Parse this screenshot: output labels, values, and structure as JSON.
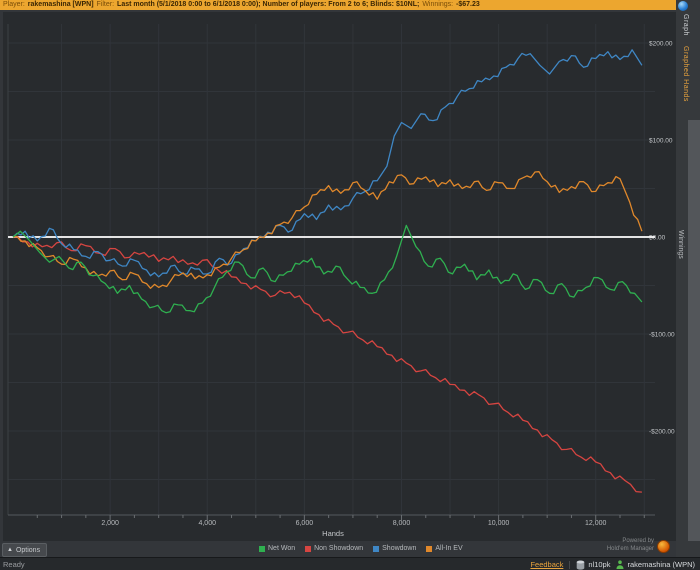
{
  "filter_bar": {
    "player_label": "Player:",
    "player_value": "rakemashina [WPN]",
    "filter_label": "Filter:",
    "filter_value": "Last month (5/1/2018 0:00 to 6/1/2018 0:00); Number of players: From 2 to 6; Blinds: $10NL;",
    "winnings_label": "Winnings:",
    "winnings_value": "-$67.23"
  },
  "right_panel": {
    "help_icon": "info-icon",
    "tabs": [
      {
        "label": "Graph",
        "active": true
      },
      {
        "label": "Graphed Hands",
        "active": false
      }
    ]
  },
  "chart_data": {
    "type": "line",
    "title": "",
    "xlabel": "Hands",
    "ylabel": "Winnings",
    "xlim": [
      0,
      13000
    ],
    "ylim": [
      -270,
      220
    ],
    "grid": true,
    "zero_line": true,
    "zero_line_color": "#ffffff",
    "background": "#282b2e",
    "grid_color": "#31353a",
    "legend_position": "bottom",
    "x_ticks": [
      {
        "v": 2000,
        "label": "2,000"
      },
      {
        "v": 4000,
        "label": "4,000"
      },
      {
        "v": 6000,
        "label": "6,000"
      },
      {
        "v": 8000,
        "label": "8,000"
      },
      {
        "v": 10000,
        "label": "10,000"
      },
      {
        "v": 12000,
        "label": "12,000"
      }
    ],
    "y_ticks": [
      {
        "v": 200,
        "label": "$200.00"
      },
      {
        "v": 100,
        "label": "$100.00"
      },
      {
        "v": 0,
        "label": "$0.00"
      },
      {
        "v": -100,
        "label": "-$100.00"
      },
      {
        "v": -200,
        "label": "-$200.00"
      }
    ],
    "series": [
      {
        "name": "Net Won",
        "color": "#2fb050",
        "points": [
          [
            0,
            0
          ],
          [
            150,
            6
          ],
          [
            350,
            -4
          ],
          [
            550,
            -16
          ],
          [
            750,
            -26
          ],
          [
            950,
            -20
          ],
          [
            1150,
            -32
          ],
          [
            1400,
            -26
          ],
          [
            1650,
            -40
          ],
          [
            1900,
            -48
          ],
          [
            2150,
            -58
          ],
          [
            2400,
            -50
          ],
          [
            2650,
            -64
          ],
          [
            2900,
            -72
          ],
          [
            3150,
            -78
          ],
          [
            3400,
            -70
          ],
          [
            3650,
            -76
          ],
          [
            3900,
            -68
          ],
          [
            4150,
            -52
          ],
          [
            4400,
            -36
          ],
          [
            4650,
            -26
          ],
          [
            4900,
            -42
          ],
          [
            5150,
            -32
          ],
          [
            5400,
            -46
          ],
          [
            5650,
            -36
          ],
          [
            5900,
            -28
          ],
          [
            6150,
            -22
          ],
          [
            6400,
            -38
          ],
          [
            6650,
            -30
          ],
          [
            6900,
            -44
          ],
          [
            7150,
            -52
          ],
          [
            7400,
            -58
          ],
          [
            7650,
            -44
          ],
          [
            7900,
            -20
          ],
          [
            8100,
            12
          ],
          [
            8300,
            -10
          ],
          [
            8550,
            -30
          ],
          [
            8800,
            -22
          ],
          [
            9050,
            -38
          ],
          [
            9300,
            -28
          ],
          [
            9550,
            -44
          ],
          [
            9800,
            -34
          ],
          [
            10050,
            -48
          ],
          [
            10300,
            -38
          ],
          [
            10550,
            -54
          ],
          [
            10800,
            -44
          ],
          [
            11050,
            -58
          ],
          [
            11300,
            -48
          ],
          [
            11550,
            -62
          ],
          [
            11800,
            -52
          ],
          [
            12050,
            -42
          ],
          [
            12300,
            -54
          ],
          [
            12550,
            -46
          ],
          [
            12800,
            -58
          ],
          [
            12950,
            -67
          ]
        ]
      },
      {
        "name": "Non Showdown",
        "color": "#d64541",
        "points": [
          [
            0,
            0
          ],
          [
            300,
            -5
          ],
          [
            600,
            -10
          ],
          [
            900,
            -6
          ],
          [
            1200,
            -14
          ],
          [
            1500,
            -9
          ],
          [
            1800,
            -17
          ],
          [
            2100,
            -12
          ],
          [
            2400,
            -21
          ],
          [
            2700,
            -16
          ],
          [
            3000,
            -25
          ],
          [
            3300,
            -20
          ],
          [
            3600,
            -28
          ],
          [
            3900,
            -24
          ],
          [
            4200,
            -33
          ],
          [
            4500,
            -41
          ],
          [
            4800,
            -48
          ],
          [
            5100,
            -54
          ],
          [
            5400,
            -60
          ],
          [
            5700,
            -57
          ],
          [
            6000,
            -68
          ],
          [
            6300,
            -80
          ],
          [
            6600,
            -90
          ],
          [
            6900,
            -98
          ],
          [
            7200,
            -106
          ],
          [
            7500,
            -113
          ],
          [
            7800,
            -122
          ],
          [
            8100,
            -130
          ],
          [
            8400,
            -138
          ],
          [
            8700,
            -145
          ],
          [
            9000,
            -152
          ],
          [
            9300,
            -158
          ],
          [
            9600,
            -163
          ],
          [
            9900,
            -172
          ],
          [
            10200,
            -181
          ],
          [
            10500,
            -189
          ],
          [
            10800,
            -199
          ],
          [
            11100,
            -209
          ],
          [
            11400,
            -219
          ],
          [
            11700,
            -227
          ],
          [
            12000,
            -232
          ],
          [
            12300,
            -243
          ],
          [
            12600,
            -251
          ],
          [
            12950,
            -263
          ]
        ]
      },
      {
        "name": "Showdown",
        "color": "#3f87c5",
        "points": [
          [
            0,
            0
          ],
          [
            250,
            6
          ],
          [
            500,
            -4
          ],
          [
            750,
            9
          ],
          [
            1000,
            -7
          ],
          [
            1250,
            -13
          ],
          [
            1500,
            -20
          ],
          [
            1750,
            -15
          ],
          [
            2000,
            -24
          ],
          [
            2250,
            -30
          ],
          [
            2500,
            -24
          ],
          [
            2750,
            -34
          ],
          [
            3000,
            -41
          ],
          [
            3250,
            -30
          ],
          [
            3500,
            -38
          ],
          [
            3750,
            -33
          ],
          [
            4000,
            -38
          ],
          [
            4250,
            -22
          ],
          [
            4500,
            -27
          ],
          [
            4750,
            -12
          ],
          [
            5000,
            -4
          ],
          [
            5250,
            5
          ],
          [
            5500,
            12
          ],
          [
            5750,
            7
          ],
          [
            6000,
            24
          ],
          [
            6250,
            18
          ],
          [
            6500,
            33
          ],
          [
            6750,
            28
          ],
          [
            7000,
            40
          ],
          [
            7250,
            47
          ],
          [
            7500,
            58
          ],
          [
            7700,
            73
          ],
          [
            7850,
            104
          ],
          [
            8000,
            118
          ],
          [
            8200,
            112
          ],
          [
            8400,
            127
          ],
          [
            8650,
            120
          ],
          [
            8900,
            134
          ],
          [
            9150,
            145
          ],
          [
            9400,
            153
          ],
          [
            9650,
            160
          ],
          [
            9900,
            166
          ],
          [
            10150,
            175
          ],
          [
            10400,
            184
          ],
          [
            10650,
            189
          ],
          [
            10850,
            177
          ],
          [
            11050,
            168
          ],
          [
            11250,
            181
          ],
          [
            11500,
            187
          ],
          [
            11750,
            175
          ],
          [
            12000,
            184
          ],
          [
            12250,
            191
          ],
          [
            12500,
            183
          ],
          [
            12750,
            193
          ],
          [
            12950,
            177
          ]
        ]
      },
      {
        "name": "All-In EV",
        "color": "#e0882b",
        "points": [
          [
            0,
            0
          ],
          [
            250,
            -4
          ],
          [
            500,
            -11
          ],
          [
            750,
            -20
          ],
          [
            1000,
            -28
          ],
          [
            1250,
            -23
          ],
          [
            1500,
            -32
          ],
          [
            1750,
            -40
          ],
          [
            2000,
            -35
          ],
          [
            2250,
            -44
          ],
          [
            2500,
            -38
          ],
          [
            2750,
            -48
          ],
          [
            3000,
            -52
          ],
          [
            3250,
            -45
          ],
          [
            3500,
            -37
          ],
          [
            3750,
            -43
          ],
          [
            4000,
            -39
          ],
          [
            4250,
            -31
          ],
          [
            4500,
            -22
          ],
          [
            4750,
            -13
          ],
          [
            5000,
            -4
          ],
          [
            5250,
            4
          ],
          [
            5500,
            13
          ],
          [
            5750,
            20
          ],
          [
            6000,
            31
          ],
          [
            6250,
            44
          ],
          [
            6500,
            53
          ],
          [
            6750,
            45
          ],
          [
            7000,
            56
          ],
          [
            7250,
            48
          ],
          [
            7500,
            39
          ],
          [
            7750,
            57
          ],
          [
            8000,
            64
          ],
          [
            8250,
            55
          ],
          [
            8500,
            62
          ],
          [
            8750,
            52
          ],
          [
            9000,
            59
          ],
          [
            9250,
            50
          ],
          [
            9500,
            57
          ],
          [
            9750,
            48
          ],
          [
            10000,
            56
          ],
          [
            10250,
            50
          ],
          [
            10500,
            61
          ],
          [
            10750,
            67
          ],
          [
            11000,
            57
          ],
          [
            11250,
            46
          ],
          [
            11500,
            52
          ],
          [
            11750,
            57
          ],
          [
            12000,
            47
          ],
          [
            12250,
            56
          ],
          [
            12500,
            60
          ],
          [
            12700,
            36
          ],
          [
            12950,
            6
          ]
        ]
      }
    ]
  },
  "footer": {
    "options_button": "Options",
    "powered_by_line1": "Powered by",
    "powered_by_line2": "Hold'em Manager"
  },
  "status_bar": {
    "ready": "Ready",
    "feedback": "Feedback",
    "database": "nl10pk",
    "player": "rakemashina (WPN)"
  }
}
